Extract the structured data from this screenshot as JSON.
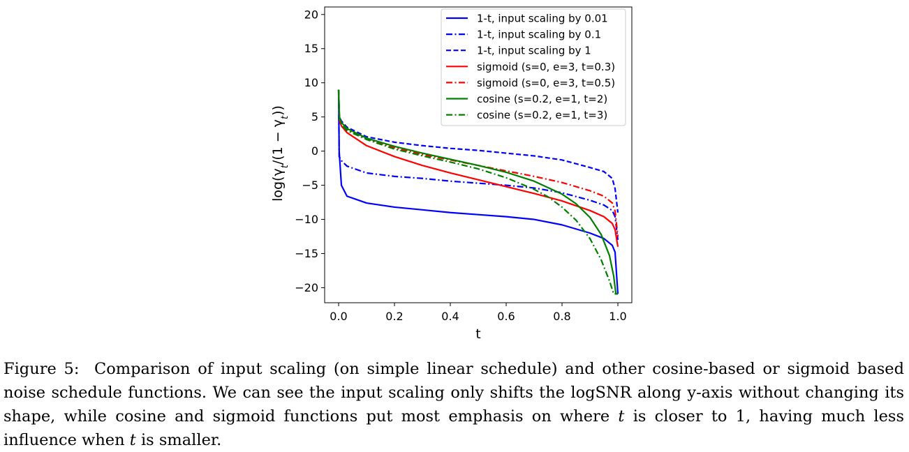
{
  "chart_data": {
    "type": "line",
    "xlabel": "t",
    "ylabel": "log(γ_t/(1 − γ_t))",
    "xlim": [
      -0.05,
      1.05
    ],
    "ylim": [
      -22.2,
      21.1
    ],
    "xticks": [
      "0.0",
      "0.2",
      "0.4",
      "0.6",
      "0.8",
      "1.0"
    ],
    "yticks": [
      "20",
      "15",
      "10",
      "5",
      "0",
      "−5",
      "−10",
      "−15",
      "−20"
    ],
    "legend_position": "top-right",
    "grid": false,
    "series": [
      {
        "name": "1-t, input scaling by 0.01",
        "color": "#0000ff",
        "dash": "solid",
        "x": [
          0.0,
          0.002,
          0.01,
          0.03,
          0.1,
          0.2,
          0.3,
          0.4,
          0.5,
          0.6,
          0.7,
          0.8,
          0.9,
          0.95,
          0.98,
          0.99,
          1.0
        ],
        "y": [
          9.0,
          0.0,
          -5.0,
          -6.6,
          -7.6,
          -8.2,
          -8.6,
          -9.0,
          -9.3,
          -9.6,
          -10.0,
          -10.8,
          -12.0,
          -12.8,
          -13.8,
          -14.8,
          -20.9
        ]
      },
      {
        "name": "1-t, input scaling by 0.1",
        "color": "#0000ff",
        "dash": "dashdot",
        "x": [
          0.0,
          0.002,
          0.01,
          0.03,
          0.1,
          0.2,
          0.3,
          0.4,
          0.5,
          0.6,
          0.7,
          0.8,
          0.9,
          0.95,
          0.98,
          0.99,
          1.0
        ],
        "y": [
          9.0,
          -0.8,
          -1.4,
          -2.2,
          -3.2,
          -3.7,
          -4.0,
          -4.4,
          -4.7,
          -5.0,
          -5.4,
          -6.1,
          -7.2,
          -7.9,
          -8.7,
          -9.6,
          -13.0
        ]
      },
      {
        "name": "1-t, input scaling by 1",
        "color": "#0000ff",
        "dash": "dashed",
        "x": [
          0.0,
          0.003,
          0.01,
          0.03,
          0.1,
          0.2,
          0.3,
          0.4,
          0.5,
          0.6,
          0.7,
          0.8,
          0.9,
          0.95,
          0.98,
          0.99,
          1.0
        ],
        "y": [
          9.0,
          5.0,
          4.4,
          3.5,
          2.1,
          1.3,
          0.8,
          0.4,
          0.1,
          -0.3,
          -0.7,
          -1.3,
          -2.4,
          -3.0,
          -4.0,
          -5.5,
          -9.0
        ]
      },
      {
        "name": "sigmoid (s=0, e=3, t=0.3)",
        "color": "#ff0000",
        "dash": "solid",
        "x": [
          0.0,
          0.003,
          0.01,
          0.03,
          0.1,
          0.2,
          0.3,
          0.4,
          0.5,
          0.6,
          0.7,
          0.8,
          0.9,
          0.95,
          0.98,
          0.99,
          1.0
        ],
        "y": [
          9.0,
          4.5,
          3.7,
          2.7,
          0.8,
          -0.8,
          -2.1,
          -3.2,
          -4.2,
          -5.2,
          -6.2,
          -7.3,
          -8.7,
          -9.6,
          -10.6,
          -11.5,
          -14.0
        ]
      },
      {
        "name": "sigmoid (s=0, e=3, t=0.5)",
        "color": "#ff0000",
        "dash": "dashdot",
        "x": [
          0.0,
          0.003,
          0.01,
          0.03,
          0.1,
          0.2,
          0.3,
          0.4,
          0.5,
          0.6,
          0.7,
          0.8,
          0.9,
          0.95,
          0.98,
          0.99,
          1.0
        ],
        "y": [
          9.0,
          4.5,
          4.0,
          3.2,
          1.8,
          0.5,
          -0.5,
          -1.3,
          -2.1,
          -2.9,
          -3.7,
          -4.6,
          -5.8,
          -6.6,
          -7.6,
          -8.8,
          -12.5
        ]
      },
      {
        "name": "cosine (s=0.2, e=1, t=2)",
        "color": "#008000",
        "dash": "solid",
        "x": [
          0.0,
          0.003,
          0.01,
          0.03,
          0.1,
          0.2,
          0.3,
          0.4,
          0.5,
          0.6,
          0.7,
          0.8,
          0.85,
          0.9,
          0.94,
          0.97,
          0.985,
          0.993,
          1.0
        ],
        "y": [
          9.0,
          5.0,
          4.2,
          3.3,
          1.9,
          0.7,
          -0.3,
          -1.2,
          -2.1,
          -3.1,
          -4.4,
          -6.3,
          -7.7,
          -9.7,
          -12.2,
          -15.3,
          -18.3,
          -20.9,
          -20.9
        ]
      },
      {
        "name": "cosine (s=0.2, e=1, t=3)",
        "color": "#008000",
        "dash": "dashdot",
        "x": [
          0.0,
          0.003,
          0.01,
          0.03,
          0.1,
          0.2,
          0.3,
          0.4,
          0.5,
          0.6,
          0.7,
          0.75,
          0.8,
          0.85,
          0.9,
          0.94,
          0.97,
          0.985,
          1.0
        ],
        "y": [
          9.0,
          4.6,
          3.9,
          3.0,
          1.7,
          0.3,
          -0.7,
          -1.6,
          -2.6,
          -3.9,
          -5.6,
          -6.7,
          -8.2,
          -10.1,
          -12.8,
          -15.9,
          -19.0,
          -20.9,
          -20.9
        ]
      }
    ]
  },
  "caption": {
    "label": "Figure 5:",
    "part1": "Comparison of input scaling (on simple linear schedule) and other cosine-based or sigmoid based noise schedule functions. We can see the input scaling only shifts the logSNR along y-axis without changing its shape, while cosine and sigmoid functions put most emphasis on where",
    "var1": "t",
    "part2": "is closer to 1, having much less influence when",
    "var2": "t",
    "part3": "is smaller."
  }
}
